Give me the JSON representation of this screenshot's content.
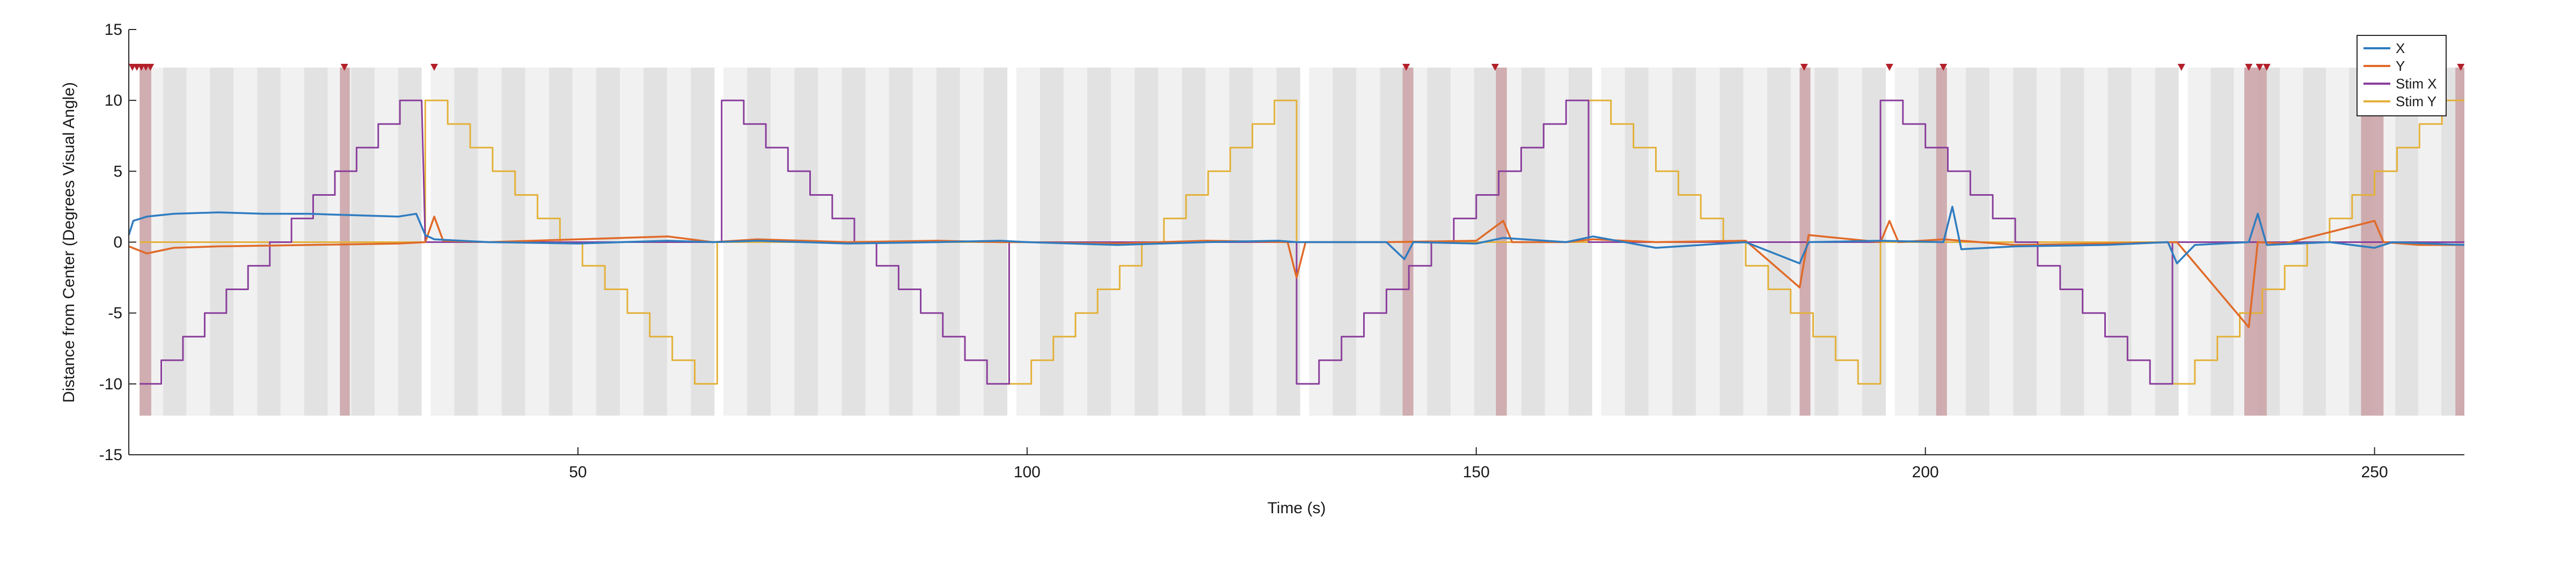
{
  "chart_data": {
    "type": "line",
    "title": "",
    "xlabel": "Time (s)",
    "ylabel": "Distance from Center (Degrees Visual Angle)",
    "xlim": [
      0,
      260
    ],
    "ylim": [
      -15,
      15
    ],
    "xticks": [
      50,
      100,
      150,
      200,
      250
    ],
    "yticks": [
      -15,
      -10,
      -5,
      0,
      5,
      10,
      15
    ],
    "grid": false,
    "legend_position": "top-right",
    "colors": {
      "X": "#2f7cc0",
      "Y": "#e06a28",
      "Stim X": "#8a3f9c",
      "Stim Y": "#e3b13a",
      "trial_band_light": "#f1f1f1",
      "trial_band_dark": "#e2e2e2",
      "event_band": "#c9a1a5",
      "event_marker": "#b3202a"
    },
    "series": [
      {
        "name": "X",
        "approx_points": [
          [
            0,
            0.5
          ],
          [
            0.5,
            1.5
          ],
          [
            2,
            1.8
          ],
          [
            5,
            2.0
          ],
          [
            10,
            2.1
          ],
          [
            15,
            2.0
          ],
          [
            20,
            2.0
          ],
          [
            25,
            1.9
          ],
          [
            30,
            1.8
          ],
          [
            32,
            2.0
          ],
          [
            33,
            0.5
          ],
          [
            34,
            0.2
          ],
          [
            40,
            0.0
          ],
          [
            50,
            -0.1
          ],
          [
            60,
            0.1
          ],
          [
            65,
            0.0
          ],
          [
            70,
            0.1
          ],
          [
            80,
            -0.1
          ],
          [
            90,
            0.0
          ],
          [
            97,
            0.1
          ],
          [
            100,
            0.0
          ],
          [
            110,
            -0.2
          ],
          [
            120,
            0.0
          ],
          [
            128,
            0.1
          ],
          [
            130,
            0.0
          ],
          [
            140,
            0.0
          ],
          [
            142,
            -1.2
          ],
          [
            143,
            0.0
          ],
          [
            150,
            -0.1
          ],
          [
            153,
            0.3
          ],
          [
            160,
            0.0
          ],
          [
            163,
            0.4
          ],
          [
            170,
            -0.4
          ],
          [
            180,
            0.0
          ],
          [
            186,
            -1.5
          ],
          [
            187,
            0.0
          ],
          [
            195,
            0.1
          ],
          [
            202,
            0.0
          ],
          [
            203,
            2.5
          ],
          [
            204,
            -0.5
          ],
          [
            210,
            -0.3
          ],
          [
            220,
            -0.2
          ],
          [
            227,
            0.0
          ],
          [
            228,
            -1.5
          ],
          [
            230,
            -0.2
          ],
          [
            236,
            0.0
          ],
          [
            237,
            2.0
          ],
          [
            238,
            -0.2
          ],
          [
            245,
            0.0
          ],
          [
            250,
            -0.4
          ],
          [
            252,
            0.0
          ],
          [
            260,
            -0.2
          ]
        ]
      },
      {
        "name": "Y",
        "approx_points": [
          [
            0,
            -0.3
          ],
          [
            2,
            -0.8
          ],
          [
            5,
            -0.4
          ],
          [
            10,
            -0.3
          ],
          [
            20,
            -0.2
          ],
          [
            30,
            -0.1
          ],
          [
            33,
            0.0
          ],
          [
            34,
            1.8
          ],
          [
            35,
            0.1
          ],
          [
            40,
            0.0
          ],
          [
            50,
            0.2
          ],
          [
            60,
            0.4
          ],
          [
            65,
            0.0
          ],
          [
            70,
            0.2
          ],
          [
            80,
            0.0
          ],
          [
            90,
            0.1
          ],
          [
            97,
            0.0
          ],
          [
            100,
            0.0
          ],
          [
            110,
            -0.1
          ],
          [
            120,
            0.1
          ],
          [
            129,
            0.0
          ],
          [
            130,
            -2.5
          ],
          [
            131,
            0.0
          ],
          [
            140,
            0.0
          ],
          [
            150,
            0.1
          ],
          [
            153,
            1.5
          ],
          [
            154,
            0.0
          ],
          [
            160,
            0.0
          ],
          [
            163,
            0.2
          ],
          [
            170,
            0.0
          ],
          [
            180,
            0.1
          ],
          [
            186,
            -3.2
          ],
          [
            187,
            0.5
          ],
          [
            195,
            0.0
          ],
          [
            196,
            1.5
          ],
          [
            197,
            0.0
          ],
          [
            202,
            0.2
          ],
          [
            210,
            -0.2
          ],
          [
            220,
            -0.1
          ],
          [
            228,
            0.0
          ],
          [
            236,
            -6.0
          ],
          [
            237,
            0.0
          ],
          [
            240,
            -0.1
          ],
          [
            250,
            1.5
          ],
          [
            251,
            0.0
          ],
          [
            255,
            -0.2
          ],
          [
            260,
            -0.2
          ]
        ]
      },
      {
        "name": "Stim X",
        "segments": [
          {
            "t_start": 1.2,
            "t_end": 32.6,
            "values": [
              -10,
              -8.33,
              -6.67,
              -5,
              -3.33,
              -1.67,
              0,
              1.67,
              3.33,
              5,
              6.67,
              8.33,
              10
            ]
          },
          {
            "t_start": 33,
            "t_end": 66,
            "values": [
              0
            ]
          },
          {
            "t_start": 66,
            "t_end": 98,
            "values": [
              10,
              8.33,
              6.67,
              5,
              3.33,
              1.67,
              0,
              -1.67,
              -3.33,
              -5,
              -6.67,
              -8.33,
              -10
            ]
          },
          {
            "t_start": 98,
            "t_end": 130,
            "values": [
              0
            ]
          },
          {
            "t_start": 130,
            "t_end": 162.5,
            "values": [
              -10,
              -8.33,
              -6.67,
              -5,
              -3.33,
              -1.67,
              0,
              1.67,
              3.33,
              5,
              6.67,
              8.33,
              10
            ]
          },
          {
            "t_start": 162.5,
            "t_end": 195,
            "values": [
              0
            ]
          },
          {
            "t_start": 195,
            "t_end": 227.5,
            "values": [
              10,
              8.33,
              6.67,
              5,
              3.33,
              1.67,
              0,
              -1.67,
              -3.33,
              -5,
              -6.67,
              -8.33,
              -10
            ]
          },
          {
            "t_start": 227.5,
            "t_end": 260,
            "values": [
              0
            ]
          }
        ]
      },
      {
        "name": "Stim Y",
        "segments": [
          {
            "t_start": 1.2,
            "t_end": 33,
            "values": [
              0
            ]
          },
          {
            "t_start": 33,
            "t_end": 65.5,
            "values": [
              10,
              8.33,
              6.67,
              5,
              3.33,
              1.67,
              0,
              -1.67,
              -3.33,
              -5,
              -6.67,
              -8.33,
              -10
            ]
          },
          {
            "t_start": 65.5,
            "t_end": 98,
            "values": [
              0
            ]
          },
          {
            "t_start": 98,
            "t_end": 130,
            "values": [
              -10,
              -8.33,
              -6.67,
              -5,
              -3.33,
              -1.67,
              0,
              1.67,
              3.33,
              5,
              6.67,
              8.33,
              10
            ]
          },
          {
            "t_start": 130,
            "t_end": 162.5,
            "values": [
              0
            ]
          },
          {
            "t_start": 162.5,
            "t_end": 195,
            "values": [
              10,
              8.33,
              6.67,
              5,
              3.33,
              1.67,
              0,
              -1.67,
              -3.33,
              -5,
              -6.67,
              -8.33,
              -10
            ]
          },
          {
            "t_start": 195,
            "t_end": 227.5,
            "values": [
              0
            ]
          },
          {
            "t_start": 227.5,
            "t_end": 260,
            "values": [
              -10,
              -8.33,
              -6.67,
              -5,
              -3.33,
              -1.67,
              0,
              1.67,
              3.33,
              5,
              6.67,
              8.33,
              10
            ]
          }
        ]
      }
    ],
    "trial_blocks": [
      {
        "start": 1.2,
        "end": 32.6
      },
      {
        "start": 33.6,
        "end": 65.2
      },
      {
        "start": 66.2,
        "end": 97.8
      },
      {
        "start": 98.8,
        "end": 130.4
      },
      {
        "start": 131.4,
        "end": 162.9
      },
      {
        "start": 163.9,
        "end": 195.6
      },
      {
        "start": 196.6,
        "end": 228.2
      },
      {
        "start": 229.2,
        "end": 260
      }
    ],
    "event_bands": [
      {
        "start": 1.2,
        "end": 2.5
      },
      {
        "start": 23.5,
        "end": 24.6
      },
      {
        "start": 141.8,
        "end": 143.0
      },
      {
        "start": 152.2,
        "end": 153.4
      },
      {
        "start": 186.0,
        "end": 187.2
      },
      {
        "start": 201.2,
        "end": 202.4
      },
      {
        "start": 235.5,
        "end": 238.0
      },
      {
        "start": 248.5,
        "end": 251.0
      },
      {
        "start": 259.0,
        "end": 260.0
      }
    ],
    "event_markers": [
      0.4,
      0.9,
      1.4,
      1.9,
      2.4,
      24.0,
      34.0,
      142.2,
      152.1,
      186.5,
      196.0,
      202.0,
      228.5,
      236.0,
      237.2,
      238.0,
      250.2,
      259.6
    ]
  }
}
